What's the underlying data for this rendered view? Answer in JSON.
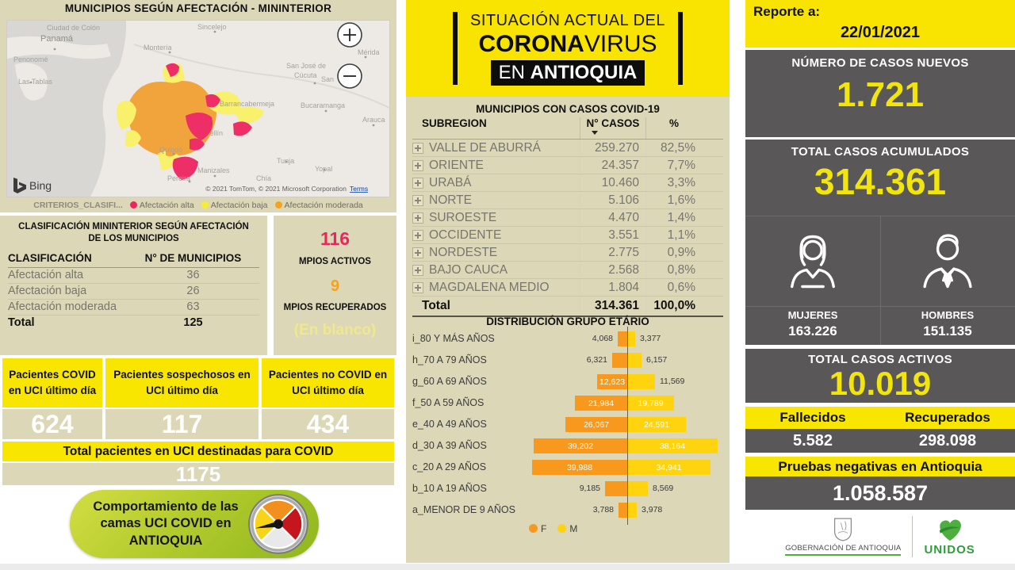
{
  "colors": {
    "background_tan": "#DCD7B6",
    "accent_yellow": "#F9E300",
    "panel_gray": "#595757",
    "number_yellow": "#F2E50B",
    "pink": "#E9275E",
    "orange": "#F5A21D",
    "bar_f": "#F8991D",
    "bar_m": "#FFD40E",
    "button_green": "#A8C525"
  },
  "left": {
    "title": "MUNICIPIOS SEGÚN AFECTACIÓN - MININTERIOR",
    "map": {
      "labels": [
        "Ciudad de Colón",
        "Panamá",
        "Penonomé",
        "Las Tablas",
        "Sincelejo",
        "Montería",
        "Mérida",
        "San José de",
        "Cúcuta",
        "San",
        "Bucaramanga",
        "Arauca",
        "Tunja",
        "Yopal",
        "Manizales",
        "Pereira",
        "Chía",
        "Quibdó",
        "Barrancabermeja",
        "Medellín"
      ],
      "bing_label": "Bing",
      "copyright": "© 2021 TomTom, © 2021 Microsoft Corporation",
      "terms": "Terms",
      "icons": {
        "zoom_in": "plus",
        "zoom_out": "minus"
      }
    },
    "legend": {
      "title": "CRITERIOS_CLASIFI...",
      "items": [
        {
          "label": "Afectación alta",
          "color": "#E9275E"
        },
        {
          "label": "Afectación baja",
          "color": "#F8EC2E"
        },
        {
          "label": "Afectación moderada",
          "color": "#F5A21D"
        }
      ]
    },
    "classification": {
      "title": "CLASIFICACIÓN MININTERIOR SEGÚN AFECTACIÓN DE LOS MUNICIPIOS",
      "col_class": "CLASIFICACIÓN",
      "col_count": "N° DE MUNICIPIOS",
      "rows": [
        {
          "label": "Afectación alta",
          "value": "36"
        },
        {
          "label": "Afectación baja",
          "value": "26"
        },
        {
          "label": "Afectación moderada",
          "value": "63"
        }
      ],
      "total_label": "Total",
      "total_value": "125"
    },
    "mpios": {
      "active_value": "116",
      "active_label": "MPIOS ACTIVOS",
      "recovered_value": "9",
      "recovered_label": "MPIOS RECUPERADOS",
      "blank_label": "(En blanco)"
    },
    "uci": {
      "columns": [
        {
          "header": "Pacientes COVID en UCI último día",
          "value": "624"
        },
        {
          "header": "Pacientes sospechosos en UCI último día",
          "value": "117"
        },
        {
          "header": "Pacientes no COVID en UCI último día",
          "value": "434"
        }
      ],
      "total_header": "Total pacientes en UCI destinadas para COVID",
      "total_value": "1175"
    },
    "uci_button": {
      "label": "Comportamiento de las camas UCI COVID en ANTIOQUIA"
    }
  },
  "middle": {
    "banner": {
      "line1": "SITUACIÓN ACTUAL DEL",
      "line2_bold": "CORONA",
      "line2_reg": "VIRUS",
      "line3_reg": "EN",
      "line3_bold": "ANTIOQUIA"
    },
    "cases_table": {
      "title": "MUNICIPIOS CON CASOS COVID-19",
      "col_subregion": "SUBREGION",
      "col_cases": "N° CASOS",
      "col_pct": "%",
      "rows": [
        {
          "name": "VALLE DE ABURRÁ",
          "cases": "259.270",
          "pct": "82,5%"
        },
        {
          "name": "ORIENTE",
          "cases": "24.357",
          "pct": "7,7%"
        },
        {
          "name": "URABÁ",
          "cases": "10.460",
          "pct": "3,3%"
        },
        {
          "name": "NORTE",
          "cases": "5.106",
          "pct": "1,6%"
        },
        {
          "name": "SUROESTE",
          "cases": "4.470",
          "pct": "1,4%"
        },
        {
          "name": "OCCIDENTE",
          "cases": "3.551",
          "pct": "1,1%"
        },
        {
          "name": "NORDESTE",
          "cases": "2.775",
          "pct": "0,9%"
        },
        {
          "name": "BAJO CAUCA",
          "cases": "2.568",
          "pct": "0,8%"
        },
        {
          "name": "MAGDALENA MEDIO",
          "cases": "1.804",
          "pct": "0,6%"
        }
      ],
      "total_label": "Total",
      "total_cases": "314.361",
      "total_pct": "100,0%"
    },
    "age_title": "DISTRIBUCIÓN GRUPO ETÁRIO"
  },
  "chart_data": {
    "type": "bar",
    "subtype": "population-pyramid",
    "title": "DISTRIBUCIÓN GRUPO ETÁRIO",
    "legend": [
      {
        "name": "F",
        "color": "#F8991D"
      },
      {
        "name": "M",
        "color": "#FFD40E"
      }
    ],
    "x_max": 40000,
    "rows": [
      {
        "label": "i_80 Y MÁS AÑOS",
        "f": 4068,
        "m": 3377,
        "f_label": "4,068",
        "m_label": "3,377",
        "f_inside": false,
        "m_inside": false
      },
      {
        "label": "h_70 A 79 AÑOS",
        "f": 6321,
        "m": 6157,
        "f_label": "6,321",
        "m_label": "6,157",
        "f_inside": false,
        "m_inside": false
      },
      {
        "label": "g_60 A 69 AÑOS",
        "f": 12623,
        "m": 11569,
        "f_label": "12,623",
        "m_label": "11,569",
        "f_inside": true,
        "m_inside": false
      },
      {
        "label": "f_50 A 59 AÑOS",
        "f": 21984,
        "m": 19789,
        "f_label": "21,984",
        "m_label": "19,789",
        "f_inside": true,
        "m_inside": true
      },
      {
        "label": "e_40 A 49 AÑOS",
        "f": 26067,
        "m": 24591,
        "f_label": "26,067",
        "m_label": "24,591",
        "f_inside": true,
        "m_inside": true
      },
      {
        "label": "d_30 A 39 AÑOS",
        "f": 39202,
        "m": 38164,
        "f_label": "39,202",
        "m_label": "38,164",
        "f_inside": true,
        "m_inside": true
      },
      {
        "label": "c_20 A 29 AÑOS",
        "f": 39988,
        "m": 34941,
        "f_label": "39,988",
        "m_label": "34,941",
        "f_inside": true,
        "m_inside": true
      },
      {
        "label": "b_10 A 19 AÑOS",
        "f": 9185,
        "m": 8569,
        "f_label": "9,185",
        "m_label": "8,569",
        "f_inside": false,
        "m_inside": false
      },
      {
        "label": "a_MENOR DE 9 AÑOS",
        "f": 3788,
        "m": 3978,
        "f_label": "3,788",
        "m_label": "3,978",
        "f_inside": false,
        "m_inside": false
      }
    ]
  },
  "right": {
    "report": {
      "label": "Reporte a:",
      "date": "22/01/2021"
    },
    "new_cases": {
      "label": "NÚMERO DE CASOS NUEVOS",
      "value": "1.721"
    },
    "total_cases": {
      "label": "TOTAL CASOS ACUMULADOS",
      "value": "314.361",
      "women_label": "MUJERES",
      "women_value": "163.226",
      "men_label": "HOMBRES",
      "men_value": "151.135"
    },
    "active": {
      "label": "TOTAL CASOS ACTIVOS",
      "value": "10.019"
    },
    "deaths": {
      "label": "Fallecidos",
      "value": "5.582"
    },
    "recovered": {
      "label": "Recuperados",
      "value": "298.098"
    },
    "negative_tests": {
      "label": "Pruebas negativas en Antioquia",
      "value": "1.058.587"
    },
    "footer": {
      "gov_label": "GOBERNACIÓN DE ANTIOQUIA",
      "unidos_label": "UNIDOS"
    }
  }
}
